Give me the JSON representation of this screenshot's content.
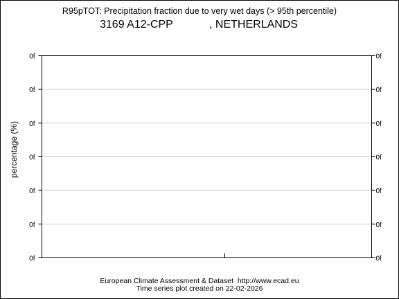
{
  "header": {
    "title": "R95pTOT: Precipitation fraction due to very wet days (> 95th percentile)",
    "station_id": "3169",
    "station_name": "A12-CPP",
    "country": ", NETHERLANDS"
  },
  "footer": {
    "line1": "European Climate Assessment & Dataset  http://www.ecad.eu",
    "line2": "Time series plot created on 22-02-2026"
  },
  "chart_data": {
    "type": "line",
    "title": "R95pTOT: Precipitation fraction due to very wet days (> 95th percentile)",
    "xlabel": "",
    "ylabel": "percentage (%)",
    "y_tick_labels": [
      "0f",
      "0f",
      "0f",
      "0f",
      "0f",
      "0f",
      "0f"
    ],
    "x_tick_labels": [],
    "series": [],
    "grid": true,
    "grid_color": "#d0d0d0",
    "axis_color": "#000000"
  }
}
